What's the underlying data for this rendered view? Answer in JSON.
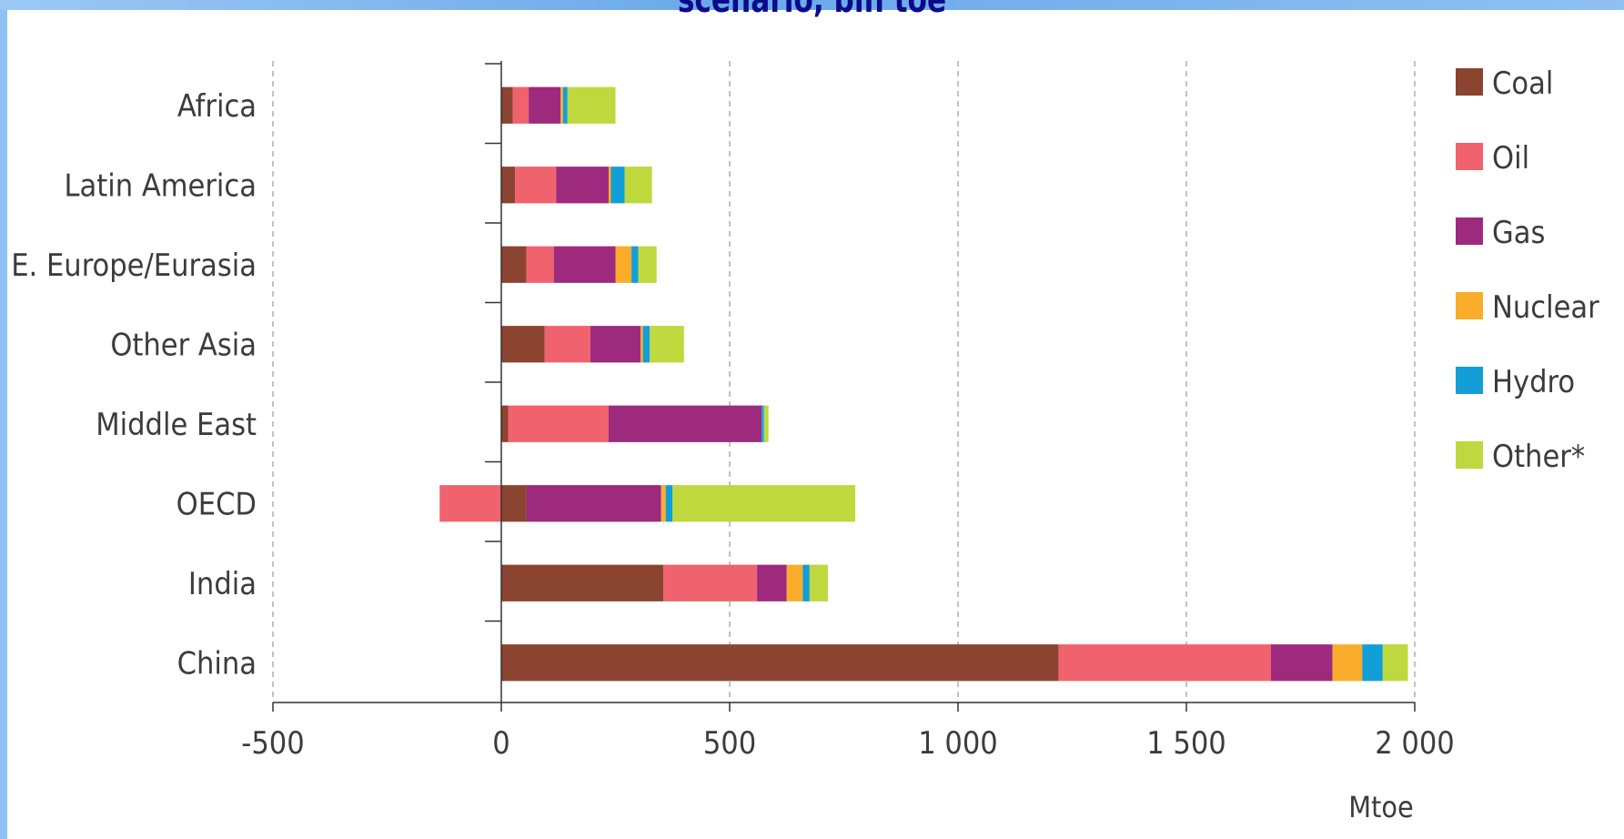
{
  "chart_data": {
    "type": "bar",
    "orientation": "horizontal",
    "stacked": true,
    "title": "scenario, bln toe",
    "xlabel": "Mtoe",
    "ylabel": "",
    "xlim": [
      -500,
      2000
    ],
    "x_ticks": [
      -500,
      0,
      500,
      1000,
      1500,
      2000
    ],
    "x_tick_labels": [
      "-500",
      "0",
      "500",
      "1 000",
      "1 500",
      "2 000"
    ],
    "grid": "vertical dashed",
    "legend_position": "right",
    "categories": [
      "Africa",
      "Latin America",
      "E. Europe/Eurasia",
      "Other Asia",
      "Middle East",
      "OECD",
      "India",
      "China"
    ],
    "series": [
      {
        "name": "Coal",
        "color": "#8b4430",
        "values": [
          25,
          30,
          55,
          95,
          15,
          55,
          355,
          1220
        ]
      },
      {
        "name": "Oil",
        "color": "#f0626e",
        "values": [
          35,
          90,
          60,
          100,
          220,
          -135,
          205,
          465
        ]
      },
      {
        "name": "Gas",
        "color": "#9e2a7e",
        "values": [
          70,
          115,
          135,
          110,
          335,
          295,
          65,
          135
        ]
      },
      {
        "name": "Nuclear",
        "color": "#f9ad2a",
        "values": [
          5,
          5,
          35,
          5,
          0,
          10,
          35,
          65
        ]
      },
      {
        "name": "Hydro",
        "color": "#139ed8",
        "values": [
          10,
          30,
          15,
          15,
          5,
          15,
          15,
          45
        ]
      },
      {
        "name": "Other*",
        "color": "#bfd83e",
        "values": [
          105,
          60,
          40,
          75,
          10,
          400,
          40,
          55
        ]
      }
    ]
  }
}
